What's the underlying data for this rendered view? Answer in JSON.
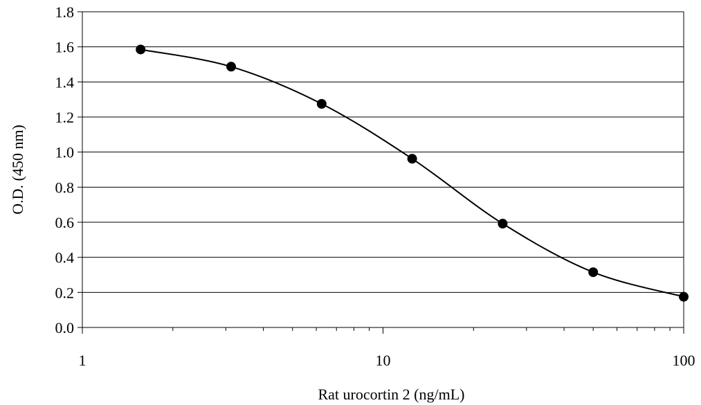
{
  "chart_data": {
    "type": "scatter",
    "title": "",
    "xlabel": "Rat urocortin 2 (ng/mL)",
    "ylabel": "O.D. (450 nm)",
    "x_scale": "log",
    "xlim": [
      1,
      100
    ],
    "ylim": [
      0,
      1.8
    ],
    "x_ticks": [
      {
        "value": 1,
        "label": "1"
      },
      {
        "value": 10,
        "label": "10"
      },
      {
        "value": 100,
        "label": "100"
      }
    ],
    "y_ticks": [
      {
        "value": 0,
        "label": "0.0"
      },
      {
        "value": 0.2,
        "label": "0.2"
      },
      {
        "value": 0.4,
        "label": "0.4"
      },
      {
        "value": 0.6,
        "label": "0.6"
      },
      {
        "value": 0.8,
        "label": "0.8"
      },
      {
        "value": 1.0,
        "label": "1.0"
      },
      {
        "value": 1.2,
        "label": "1.2"
      },
      {
        "value": 1.4,
        "label": "1.4"
      },
      {
        "value": 1.6,
        "label": "1.6"
      },
      {
        "value": 1.8,
        "label": "1.8"
      }
    ],
    "grid": "horizontal",
    "series": [
      {
        "x": [
          1.5625,
          3.125,
          6.25,
          12.5,
          25,
          50,
          100
        ],
        "y": [
          1.585,
          1.487,
          1.275,
          0.962,
          0.592,
          0.315,
          0.175
        ],
        "marker": "filled-circle",
        "line": "smooth",
        "color": "#000000"
      }
    ]
  }
}
